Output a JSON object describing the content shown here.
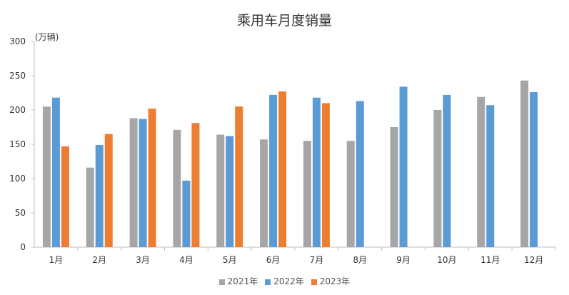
{
  "chart_data": {
    "type": "bar",
    "title": "乘用车月度销量",
    "unit": "(万辆)",
    "categories": [
      "1月",
      "2月",
      "3月",
      "4月",
      "5月",
      "6月",
      "7月",
      "8月",
      "9月",
      "10月",
      "11月",
      "12月"
    ],
    "series": [
      {
        "name": "2021年",
        "color": "#a6a6a6",
        "values": [
          205,
          116,
          188,
          171,
          164,
          157,
          155,
          155,
          175,
          200,
          219,
          243
        ]
      },
      {
        "name": "2022年",
        "color": "#5b9bd5",
        "values": [
          218,
          149,
          187,
          97,
          162,
          222,
          218,
          213,
          234,
          222,
          207,
          226
        ]
      },
      {
        "name": "2023年",
        "color": "#ed7d31",
        "values": [
          147,
          165,
          202,
          181,
          205,
          227,
          210,
          null,
          null,
          null,
          null,
          null
        ]
      }
    ],
    "ylim": [
      0,
      300
    ],
    "yticks": [
      0,
      50,
      100,
      150,
      200,
      250,
      300
    ],
    "grid": false,
    "legend": "bottom-center"
  }
}
